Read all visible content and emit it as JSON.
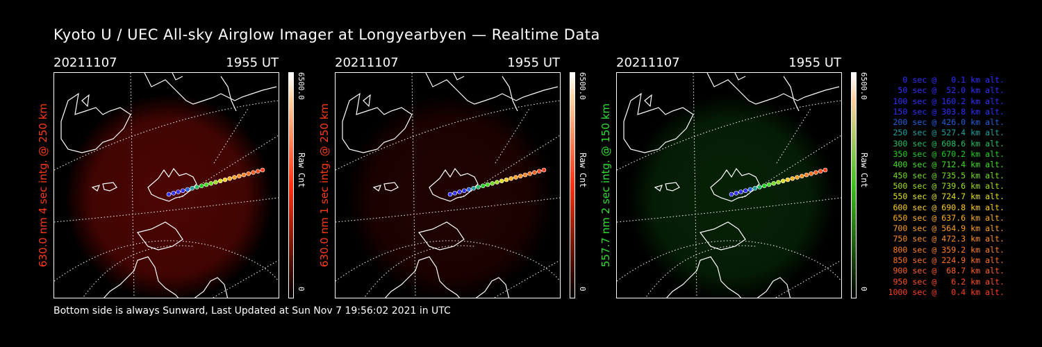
{
  "title": "Kyoto U / UEC All-sky Airglow Imager at Longyearbyen — Realtime Data",
  "panels": [
    {
      "date": "20211107",
      "time": "1955 UT",
      "ylabel": "630.0 nm 4 sec intg. @ 250 km",
      "cb_max": "6500.0",
      "cb_label": "Raw Cnt",
      "cb_min": "0",
      "glow": "#8a0a04",
      "glow_strength": 0.55,
      "ylabel_color": "#ff3a1a",
      "cbar": "#ff3010"
    },
    {
      "date": "20211107",
      "time": "1955 UT",
      "ylabel": "630.0 nm 1 sec intg. @ 250 km",
      "cb_max": "6500.0",
      "cb_label": "Raw Cnt",
      "cb_min": "0",
      "glow": "#5a0502",
      "glow_strength": 0.35,
      "ylabel_color": "#ff3a1a",
      "cbar": "#ff3010"
    },
    {
      "date": "20211107",
      "time": "1955 UT",
      "ylabel": "557.7 nm 2 sec intg. @ 150 km",
      "cb_max": "6500.0",
      "cb_label": "Raw Cnt",
      "cb_min": "0",
      "glow": "#0c4a0c",
      "glow_strength": 0.45,
      "ylabel_color": "#30e030",
      "cbar": "#40c020"
    }
  ],
  "legend": [
    {
      "t": "   0 sec @   0.1 km alt.",
      "c": "#3030ff"
    },
    {
      "t": "  50 sec @  52.0 km alt.",
      "c": "#3030ff"
    },
    {
      "t": " 100 sec @ 160.2 km alt.",
      "c": "#3030ff"
    },
    {
      "t": " 150 sec @ 303.8 km alt.",
      "c": "#3030ff"
    },
    {
      "t": " 200 sec @ 426.0 km alt.",
      "c": "#2060e0"
    },
    {
      "t": " 250 sec @ 527.4 km alt.",
      "c": "#20a0a0"
    },
    {
      "t": " 300 sec @ 608.6 km alt.",
      "c": "#20c060"
    },
    {
      "t": " 350 sec @ 670.2 km alt.",
      "c": "#20d020"
    },
    {
      "t": " 400 sec @ 712.4 km alt.",
      "c": "#40e020"
    },
    {
      "t": " 450 sec @ 735.5 km alt.",
      "c": "#70e020"
    },
    {
      "t": " 500 sec @ 739.6 km alt.",
      "c": "#a0e020"
    },
    {
      "t": " 550 sec @ 724.7 km alt.",
      "c": "#e0e020"
    },
    {
      "t": " 600 sec @ 690.8 km alt.",
      "c": "#ffd020"
    },
    {
      "t": " 650 sec @ 637.6 km alt.",
      "c": "#ffb020"
    },
    {
      "t": " 700 sec @ 564.9 km alt.",
      "c": "#ffa020"
    },
    {
      "t": " 750 sec @ 472.3 km alt.",
      "c": "#ff9020"
    },
    {
      "t": " 800 sec @ 359.2 km alt.",
      "c": "#ff8020"
    },
    {
      "t": " 850 sec @ 224.9 km alt.",
      "c": "#ff7020"
    },
    {
      "t": " 900 sec @  68.7 km alt.",
      "c": "#ff6020"
    },
    {
      "t": " 950 sec @   6.2 km alt.",
      "c": "#ff5020"
    },
    {
      "t": "1000 sec @   0.4 km alt.",
      "c": "#ff4020"
    }
  ],
  "footer": "Bottom side is always Sunward, Last Updated at Sun Nov  7 19:56:02 2021 in UTC"
}
